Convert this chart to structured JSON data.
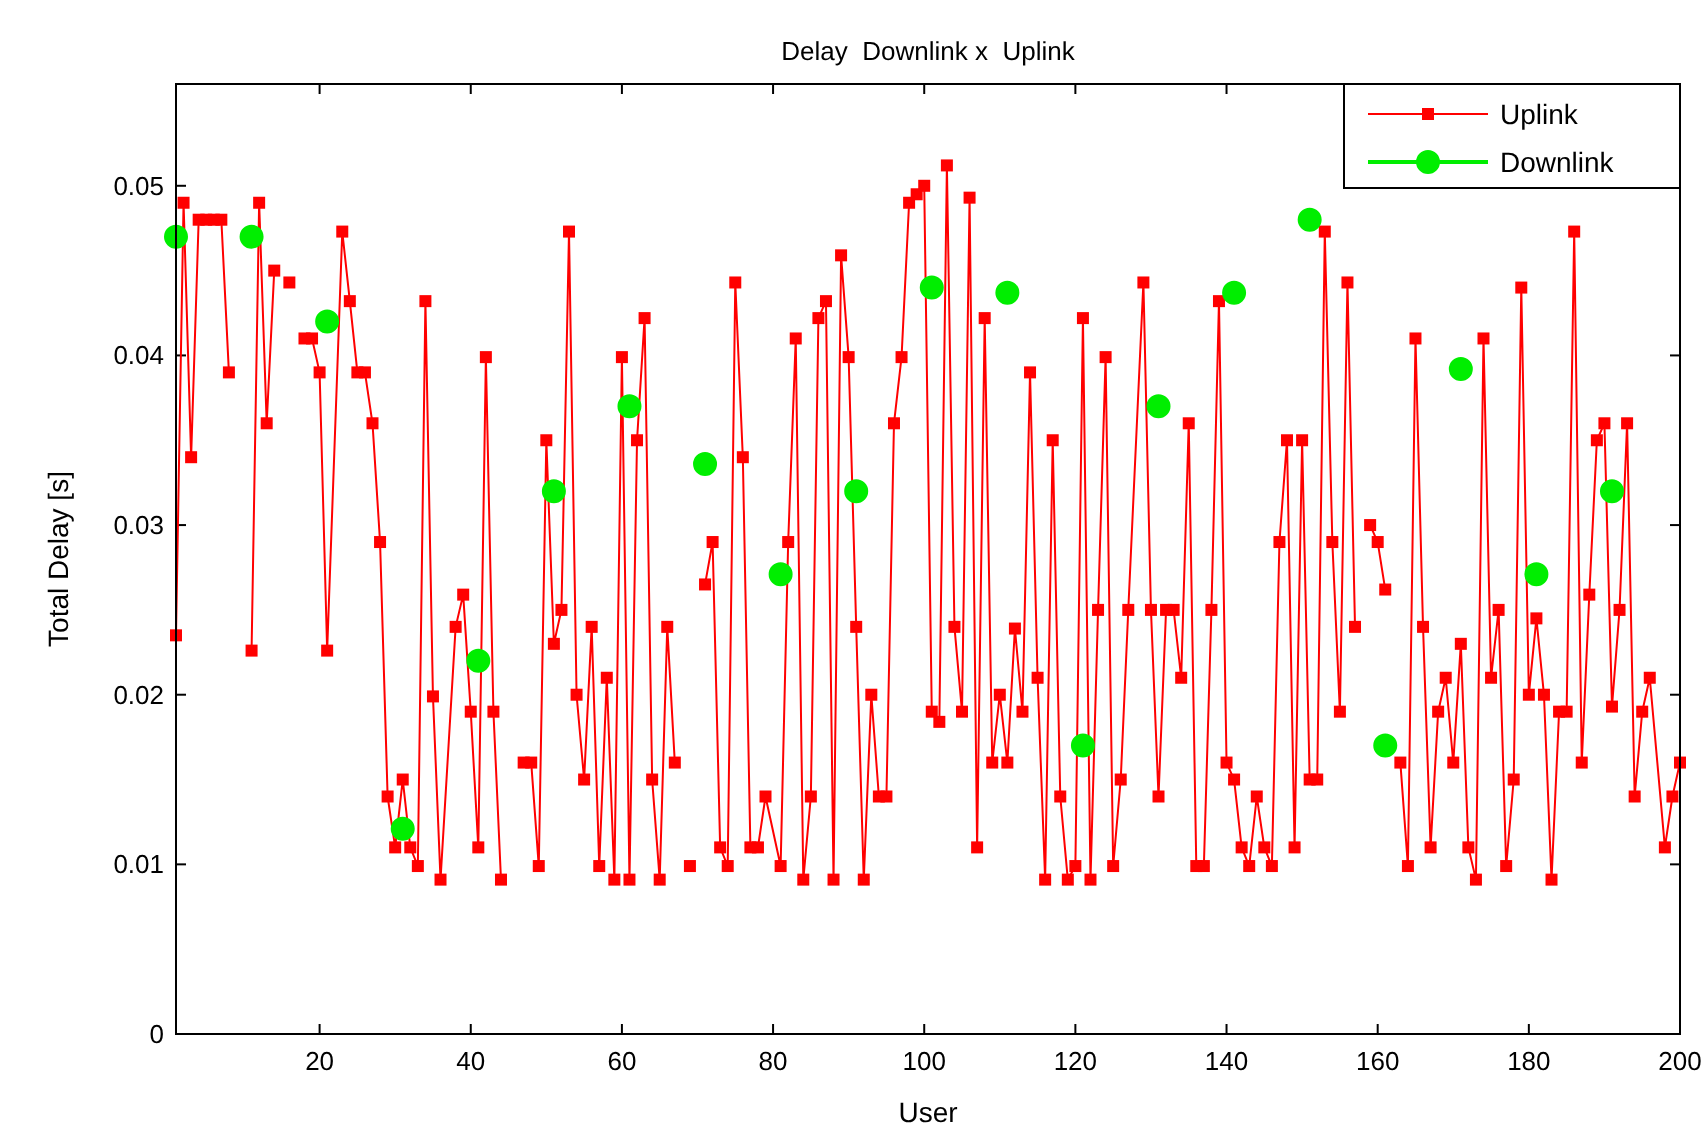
{
  "chart_data": {
    "type": "line",
    "title": "Delay  Downlink x  Uplink",
    "xlabel": "User",
    "ylabel": "Total Delay [s]",
    "xlim": [
      1,
      200
    ],
    "ylim": [
      0,
      0.056
    ],
    "xticks": [
      20,
      40,
      60,
      80,
      100,
      120,
      140,
      160,
      180,
      200
    ],
    "yticks": [
      0,
      0.01,
      0.02,
      0.03,
      0.04,
      0.05
    ],
    "grid": false,
    "legend": "top right",
    "line_style": "solid",
    "series": [
      {
        "name": "Uplink",
        "marker": "square",
        "color": "#ff0000",
        "x": [
          1,
          2,
          3,
          4,
          5,
          6,
          7,
          8,
          9,
          11,
          12,
          13,
          14,
          15,
          16,
          17,
          18,
          19,
          20,
          21,
          23,
          24,
          25,
          26,
          27,
          28,
          29,
          30,
          31,
          32,
          33,
          34,
          35,
          36,
          38,
          39,
          40,
          41,
          42,
          43,
          44,
          45,
          47,
          48,
          49,
          50,
          51,
          52,
          53,
          54,
          55,
          56,
          57,
          58,
          59,
          60,
          61,
          62,
          63,
          64,
          65,
          66,
          67,
          68,
          69,
          70,
          71,
          72,
          73,
          74,
          75,
          76,
          77,
          78,
          79,
          81,
          82,
          83,
          84,
          85,
          86,
          87,
          88,
          89,
          90,
          91,
          92,
          93,
          94,
          95,
          96,
          97,
          98,
          99,
          100,
          101,
          102,
          103,
          104,
          105,
          106,
          107,
          108,
          109,
          110,
          111,
          112,
          113,
          114,
          115,
          116,
          117,
          118,
          119,
          120,
          121,
          122,
          123,
          124,
          125,
          126,
          127,
          129,
          130,
          131,
          132,
          133,
          134,
          135,
          136,
          137,
          138,
          139,
          140,
          141,
          142,
          143,
          144,
          145,
          146,
          147,
          148,
          149,
          150,
          151,
          152,
          153,
          154,
          155,
          156,
          157,
          158,
          159,
          160,
          161,
          162,
          163,
          164,
          165,
          166,
          167,
          168,
          169,
          170,
          171,
          172,
          173,
          174,
          175,
          176,
          177,
          178,
          179,
          180,
          181,
          182,
          183,
          184,
          185,
          186,
          187,
          188,
          189,
          190,
          191,
          192,
          193,
          194,
          195,
          196,
          198,
          199,
          200
        ],
        "values": [
          0.0235,
          0.049,
          0.034,
          0.048,
          0.048,
          0.048,
          0.048,
          0.039,
          null,
          0.0226,
          0.049,
          0.036,
          0.045,
          null,
          0.0443,
          null,
          0.041,
          0.041,
          0.039,
          0.0226,
          0.0473,
          0.0432,
          0.039,
          0.039,
          0.036,
          0.029,
          0.014,
          0.011,
          0.015,
          0.011,
          0.0099,
          0.0432,
          0.0199,
          0.0091,
          0.024,
          0.0259,
          0.019,
          0.011,
          0.0399,
          0.019,
          0.0091,
          null,
          0.016,
          0.016,
          0.0099,
          0.035,
          0.023,
          0.025,
          0.0473,
          0.02,
          0.015,
          0.024,
          0.0099,
          0.021,
          0.0091,
          0.0399,
          0.0091,
          0.035,
          0.0422,
          0.015,
          0.0091,
          0.024,
          0.016,
          null,
          0.0099,
          null,
          0.0265,
          0.029,
          0.011,
          0.0099,
          0.0443,
          0.034,
          0.011,
          0.011,
          0.014,
          0.0099,
          0.029,
          0.041,
          0.0091,
          0.014,
          0.0422,
          0.0432,
          0.0091,
          0.0459,
          0.0399,
          0.024,
          0.0091,
          0.02,
          0.014,
          0.014,
          0.036,
          0.0399,
          0.049,
          0.0495,
          0.05,
          0.019,
          0.0184,
          0.0512,
          0.024,
          0.019,
          0.0493,
          0.011,
          0.0422,
          0.016,
          0.02,
          0.016,
          0.0239,
          0.019,
          0.039,
          0.021,
          0.0091,
          0.035,
          0.014,
          0.0091,
          0.0099,
          0.0422,
          0.0091,
          0.025,
          0.0399,
          0.0099,
          0.015,
          0.025,
          0.0443,
          0.025,
          0.014,
          0.025,
          0.025,
          0.021,
          0.036,
          0.0099,
          0.0099,
          0.025,
          0.0432,
          0.016,
          0.015,
          0.011,
          0.0099,
          0.014,
          0.011,
          0.0099,
          0.029,
          0.035,
          0.011,
          0.035,
          0.015,
          0.015,
          0.0473,
          0.029,
          0.019,
          0.0443,
          0.024,
          null,
          0.03,
          0.029,
          0.0262,
          null,
          0.016,
          0.0099,
          0.041,
          0.024,
          0.011,
          0.019,
          0.021,
          0.016,
          0.023,
          0.011,
          0.0091,
          0.041,
          0.021,
          0.025,
          0.0099,
          0.015,
          0.044,
          0.02,
          0.0245,
          0.02,
          0.0091,
          0.019,
          0.019,
          0.0473,
          0.016,
          0.0259,
          0.035,
          0.036,
          0.0193,
          0.025,
          0.036,
          0.014,
          0.019,
          0.021,
          0.011,
          0.014,
          0.016
        ]
      },
      {
        "name": "Downlink",
        "type": "scatter",
        "marker": "circle",
        "color": "#00ee00",
        "x": [
          1,
          11,
          21,
          31,
          41,
          51,
          61,
          71,
          81,
          91,
          101,
          111,
          121,
          131,
          141,
          151,
          161,
          171,
          181,
          191
        ],
        "values": [
          0.047,
          0.047,
          0.042,
          0.0121,
          0.022,
          0.032,
          0.037,
          0.0336,
          0.0271,
          0.032,
          0.044,
          0.0437,
          0.017,
          0.037,
          0.0437,
          0.048,
          0.017,
          0.0392,
          0.0271,
          0.032
        ]
      }
    ]
  }
}
